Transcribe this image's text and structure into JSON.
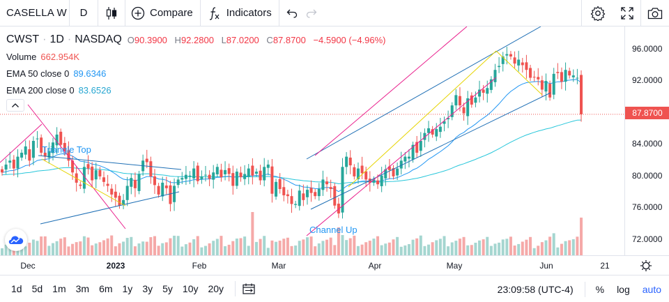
{
  "toolbar": {
    "symbol": "CASELLA W",
    "interval": "D",
    "compare_label": "Compare",
    "indicators_label": "Indicators"
  },
  "legend": {
    "ticker": "CWST",
    "interval": "1D",
    "exchange": "NASDAQ",
    "o_label": "O",
    "o_value": "90.3900",
    "h_label": "H",
    "h_value": "92.2800",
    "l_label": "L",
    "l_value": "87.0200",
    "c_label": "C",
    "c_value": "87.8700",
    "change": "−4.5900 (−4.96%)",
    "volume_label": "Volume",
    "volume_value": "662.954K",
    "ema50_label": "EMA 50 close 0",
    "ema50_value": "89.6346",
    "ema200_label": "EMA 200 close 0",
    "ema200_value": "83.6526"
  },
  "drawings": {
    "triangle_label": "Triangle Top",
    "channel_label": "Channel Up"
  },
  "price_axis": {
    "ticks": [
      "96.0000",
      "92.0000",
      "88.0000",
      "84.0000",
      "80.0000",
      "76.0000",
      "72.0000"
    ],
    "last_price": "87.8700"
  },
  "time_axis": {
    "ticks": [
      {
        "label": "Dec",
        "bold": false
      },
      {
        "label": "2023",
        "bold": true
      },
      {
        "label": "Feb",
        "bold": false
      },
      {
        "label": "Mar",
        "bold": false
      },
      {
        "label": "Apr",
        "bold": false
      },
      {
        "label": "May",
        "bold": false
      },
      {
        "label": "Jun",
        "bold": false
      },
      {
        "label": "21",
        "bold": false
      }
    ]
  },
  "bottom": {
    "ranges": [
      "1d",
      "5d",
      "1m",
      "3m",
      "6m",
      "1y",
      "3y",
      "5y",
      "10y",
      "20y"
    ],
    "clock": "23:09:58 (UTC-4)",
    "percent_label": "%",
    "log_label": "log",
    "auto_label": "auto"
  },
  "colors": {
    "up": "#26a69a",
    "down": "#ef5350",
    "ema50": "#2196f3",
    "ema200": "#26c6da",
    "trendline": "#1e6fb5",
    "pink": "#e91e8c",
    "yellow": "#e6d400"
  },
  "chart_data": {
    "type": "candlestick",
    "symbol": "CWST",
    "ylim": [
      70,
      99
    ],
    "closes": [
      80.5,
      81.5,
      82.0,
      81.0,
      82.5,
      83.0,
      83.8,
      82.0,
      84.5,
      84.8,
      83.0,
      82.5,
      83.2,
      84.3,
      85.3,
      84.0,
      83.2,
      82.0,
      80.5,
      79.2,
      78.8,
      81.2,
      81.0,
      79.5,
      80.8,
      80.0,
      79.3,
      78.8,
      77.7,
      77.3,
      76.3,
      77.0,
      78.8,
      79.8,
      78.5,
      80.3,
      82.0,
      81.8,
      80.0,
      78.9,
      77.7,
      79.2,
      78.5,
      76.5,
      78.8,
      79.6,
      79.8,
      80.2,
      80.1,
      81.0,
      79.4,
      80.0,
      80.2,
      79.7,
      80.5,
      81.2,
      79.9,
      80.8,
      80.3,
      78.8,
      80.6,
      79.9,
      80.3,
      81.0,
      80.1,
      80.6,
      79.5,
      81.2,
      81.5,
      77.8,
      79.3,
      78.4,
      77.6,
      77.5,
      76.5,
      76.5,
      78.2,
      77.0,
      78.3,
      77.9,
      77.5,
      78.4,
      79.6,
      79.0,
      78.4,
      76.3,
      75.3,
      81.2,
      82.5,
      81.4,
      80.0,
      81.0,
      80.4,
      79.6,
      79.2,
      79.6,
      79.0,
      80.1,
      80.9,
      80.8,
      80.0,
      81.0,
      82.0,
      82.5,
      82.5,
      84.0,
      83.0,
      84.5,
      85.5,
      86.1,
      85.3,
      86.0,
      86.3,
      87.0,
      87.4,
      89.0,
      90.3,
      89.0,
      88.0,
      89.9,
      89.1,
      90.0,
      91.0,
      90.6,
      91.2,
      92.3,
      93.5,
      94.0,
      95.2,
      95.5,
      95.2,
      94.3,
      94.8,
      94.1,
      93.5,
      92.5,
      92.6,
      92.3,
      91.0,
      92.1,
      90.0,
      93.0,
      93.1,
      92.0,
      93.5,
      92.8,
      92.8,
      92.5,
      87.87
    ],
    "volume_last": "662.954K",
    "indicators": [
      {
        "name": "EMA 50 close 0",
        "last": 89.6346
      },
      {
        "name": "EMA 200 close 0",
        "last": 83.6526
      }
    ],
    "last_price": 87.87,
    "drawing_labels": [
      "Triangle Top",
      "Channel Up"
    ]
  }
}
